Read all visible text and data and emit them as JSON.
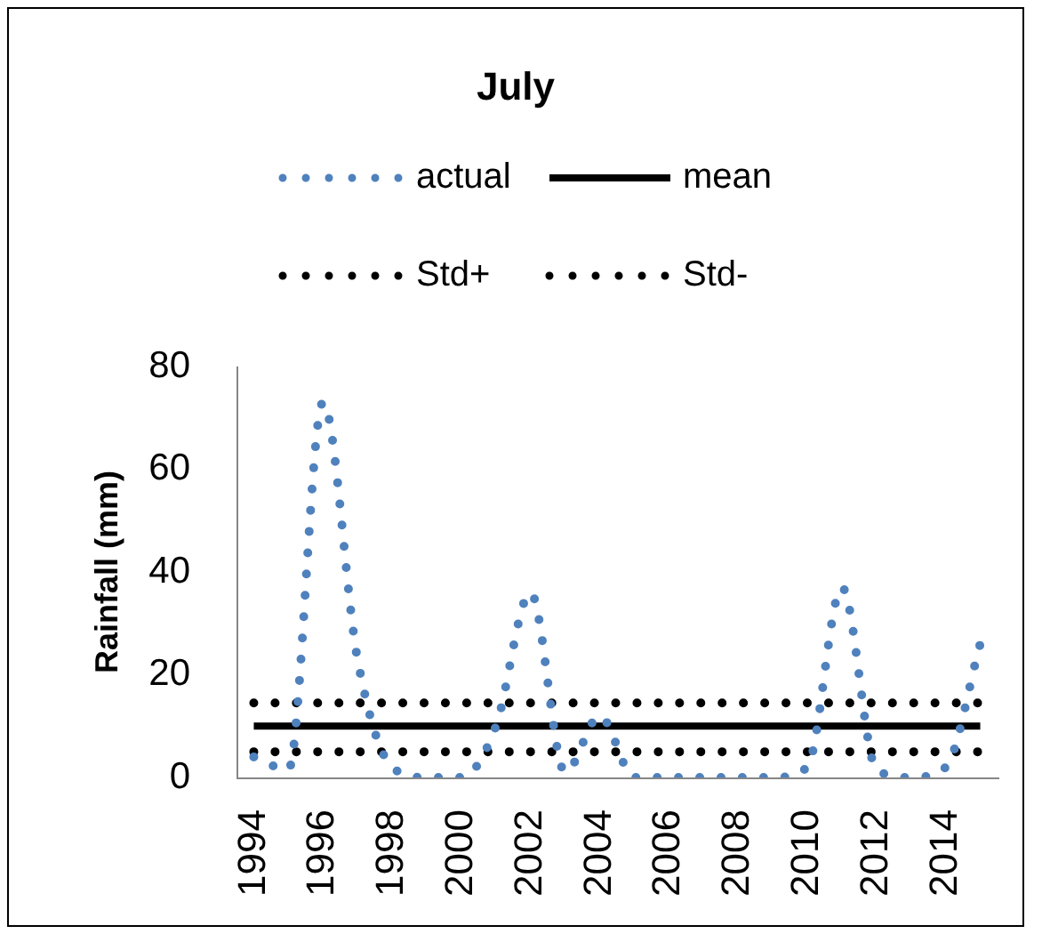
{
  "chart_data": {
    "type": "line",
    "title": "July",
    "ylabel": "Rainfall (mm)",
    "categories": [
      "1994",
      null,
      "1996",
      null,
      "1998",
      null,
      "2000",
      null,
      "2002",
      null,
      "2004",
      null,
      "2006",
      null,
      "2008",
      null,
      "2010",
      null,
      "2012",
      null,
      "2014",
      null
    ],
    "series": [
      {
        "name": "actual",
        "color": "#4f81bd",
        "line_style": "dotted",
        "values": [
          4,
          1.5,
          73,
          23,
          2,
          0,
          0,
          10,
          36,
          1,
          12,
          0,
          0,
          0,
          0,
          0,
          2,
          37,
          1.5,
          0,
          2,
          26
        ]
      },
      {
        "name": "mean",
        "color": "#000000",
        "line_style": "solid",
        "values": [
          10,
          10,
          10,
          10,
          10,
          10,
          10,
          10,
          10,
          10,
          10,
          10,
          10,
          10,
          10,
          10,
          10,
          10,
          10,
          10,
          10,
          10
        ]
      },
      {
        "name": "Std+",
        "color": "#000000",
        "line_style": "dotted",
        "values": [
          14.5,
          14.5,
          14.5,
          14.5,
          14.5,
          14.5,
          14.5,
          14.5,
          14.5,
          14.5,
          14.5,
          14.5,
          14.5,
          14.5,
          14.5,
          14.5,
          14.5,
          14.5,
          14.5,
          14.5,
          14.5,
          14.5
        ]
      },
      {
        "name": "Std-",
        "color": "#000000",
        "line_style": "dotted",
        "values": [
          5,
          5,
          5,
          5,
          5,
          5,
          5,
          5,
          5,
          5,
          5,
          5,
          5,
          5,
          5,
          5,
          5,
          5,
          5,
          5,
          5,
          5
        ]
      }
    ],
    "ylim": [
      0,
      80
    ],
    "yticks": [
      0,
      20,
      40,
      60,
      80
    ],
    "grid": false,
    "legend": "top",
    "marker": "none"
  }
}
